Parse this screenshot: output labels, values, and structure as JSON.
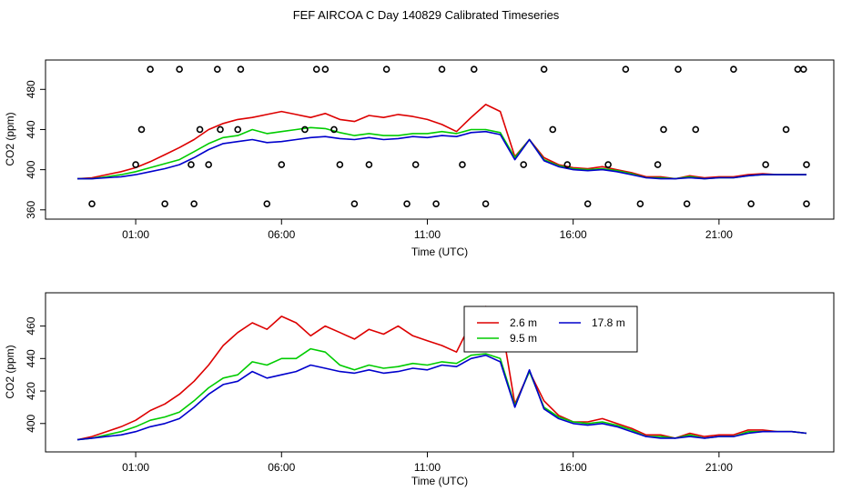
{
  "title": "FEF AIRCOA C  Day 140829  Calibrated Timeseries",
  "colors": {
    "s2_6": "#dd0000",
    "s9_5": "#00cc00",
    "s17_8": "#0000cc",
    "axis": "#000000"
  },
  "chart_data": [
    {
      "type": "line",
      "title": "FEF AIRCOA C  Day 140829  Calibrated Timeseries",
      "xlabel": "Time (UTC)",
      "ylabel": "CO2 (ppm)",
      "x_unit": "hours UTC",
      "xlim": [
        -1.0,
        24.0
      ],
      "ylim": [
        358,
        502
      ],
      "x_ticks": [
        1,
        6,
        11,
        16,
        21
      ],
      "x_tick_labels": [
        "01:00",
        "06:00",
        "11:00",
        "16:00",
        "21:00"
      ],
      "y_ticks": [
        360,
        400,
        440,
        480
      ],
      "y_tick_labels": [
        "360",
        "400",
        "440",
        "480"
      ],
      "grid": false,
      "legend": "none",
      "series": [
        {
          "color_key": "s2_6",
          "x": [
            -1.0,
            -0.5,
            0.0,
            0.5,
            1.0,
            1.5,
            2.0,
            2.5,
            3.0,
            3.5,
            4.0,
            4.5,
            5.0,
            5.5,
            6.0,
            6.5,
            7.0,
            7.5,
            8.0,
            8.5,
            9.0,
            9.5,
            10.0,
            10.5,
            11.0,
            11.5,
            12.0,
            12.5,
            13.0,
            13.5,
            14.0,
            14.5,
            15.0,
            15.5,
            16.0,
            16.5,
            17.0,
            17.5,
            18.0,
            18.5,
            19.0,
            19.5,
            20.0,
            20.5,
            21.0,
            21.5,
            22.0,
            22.5,
            23.0,
            23.5,
            24.0
          ],
          "y": [
            391,
            392,
            395,
            398,
            402,
            408,
            415,
            422,
            430,
            440,
            446,
            450,
            452,
            455,
            458,
            455,
            452,
            456,
            450,
            448,
            454,
            452,
            455,
            453,
            450,
            445,
            438,
            452,
            465,
            458,
            413,
            430,
            412,
            405,
            402,
            401,
            403,
            400,
            397,
            393,
            393,
            391,
            394,
            392,
            393,
            393,
            395,
            396,
            395,
            395,
            395
          ]
        },
        {
          "color_key": "s9_5",
          "x": [
            -1.0,
            -0.5,
            0.0,
            0.5,
            1.0,
            1.5,
            2.0,
            2.5,
            3.0,
            3.5,
            4.0,
            4.5,
            5.0,
            5.5,
            6.0,
            6.5,
            7.0,
            7.5,
            8.0,
            8.5,
            9.0,
            9.5,
            10.0,
            10.5,
            11.0,
            11.5,
            12.0,
            12.5,
            13.0,
            13.5,
            14.0,
            14.5,
            15.0,
            15.5,
            16.0,
            16.5,
            17.0,
            17.5,
            18.0,
            18.5,
            19.0,
            19.5,
            20.0,
            20.5,
            21.0,
            21.5,
            22.0,
            22.5,
            23.0,
            23.5,
            24.0
          ],
          "y": [
            391,
            391,
            393,
            395,
            398,
            402,
            406,
            410,
            418,
            426,
            432,
            434,
            440,
            436,
            438,
            440,
            442,
            441,
            437,
            434,
            436,
            434,
            434,
            436,
            436,
            438,
            436,
            440,
            440,
            437,
            412,
            430,
            410,
            404,
            401,
            400,
            401,
            399,
            396,
            392,
            392,
            391,
            393,
            391,
            392,
            392,
            394,
            395,
            395,
            395,
            395
          ]
        },
        {
          "color_key": "s17_8",
          "x": [
            -1.0,
            -0.5,
            0.0,
            0.5,
            1.0,
            1.5,
            2.0,
            2.5,
            3.0,
            3.5,
            4.0,
            4.5,
            5.0,
            5.5,
            6.0,
            6.5,
            7.0,
            7.5,
            8.0,
            8.5,
            9.0,
            9.5,
            10.0,
            10.5,
            11.0,
            11.5,
            12.0,
            12.5,
            13.0,
            13.5,
            14.0,
            14.5,
            15.0,
            15.5,
            16.0,
            16.5,
            17.0,
            17.5,
            18.0,
            18.5,
            19.0,
            19.5,
            20.0,
            20.5,
            21.0,
            21.5,
            22.0,
            22.5,
            23.0,
            23.5,
            24.0
          ],
          "y": [
            391,
            391,
            392,
            393,
            395,
            398,
            401,
            405,
            412,
            420,
            426,
            428,
            430,
            427,
            428,
            430,
            432,
            433,
            431,
            430,
            432,
            430,
            431,
            433,
            432,
            434,
            433,
            437,
            438,
            435,
            410,
            430,
            409,
            403,
            400,
            399,
            400,
            398,
            395,
            392,
            391,
            391,
            392,
            391,
            392,
            392,
            394,
            395,
            395,
            395,
            395
          ]
        }
      ],
      "scatter_points": {
        "x": [
          -0.5,
          1.0,
          1.2,
          1.5,
          2.0,
          2.5,
          2.9,
          3.0,
          3.2,
          3.5,
          3.8,
          3.9,
          4.5,
          4.6,
          5.5,
          6.0,
          6.8,
          7.2,
          7.5,
          7.8,
          8.0,
          8.5,
          9.0,
          9.6,
          10.3,
          10.6,
          11.3,
          11.5,
          12.2,
          12.6,
          13.0,
          14.3,
          15.0,
          15.3,
          15.8,
          16.5,
          17.2,
          17.8,
          18.3,
          18.9,
          19.1,
          19.6,
          19.9,
          20.2,
          21.5,
          22.1,
          22.6,
          23.3,
          23.7,
          23.9,
          24.0,
          24.0
        ],
        "y": [
          366,
          405,
          440,
          500,
          366,
          500,
          405,
          366,
          440,
          405,
          500,
          440,
          440,
          500,
          366,
          405,
          440,
          500,
          500,
          440,
          405,
          366,
          405,
          500,
          366,
          405,
          366,
          500,
          405,
          500,
          366,
          405,
          500,
          440,
          405,
          366,
          405,
          500,
          366,
          405,
          440,
          500,
          366,
          440,
          500,
          366,
          405,
          440,
          500,
          500,
          366,
          405
        ]
      }
    },
    {
      "type": "line",
      "xlabel": "Time (UTC)",
      "ylabel": "CO2 (ppm)",
      "x_unit": "hours UTC",
      "xlim": [
        -1.0,
        24.0
      ],
      "ylim": [
        387,
        476
      ],
      "x_ticks": [
        1,
        6,
        11,
        16,
        21
      ],
      "x_tick_labels": [
        "01:00",
        "06:00",
        "11:00",
        "16:00",
        "21:00"
      ],
      "y_ticks": [
        400,
        420,
        440,
        460
      ],
      "y_tick_labels": [
        "400",
        "420",
        "440",
        "460"
      ],
      "grid": false,
      "legend": "top-right",
      "legend_entries": [
        {
          "label": "2.6 m",
          "color_key": "s2_6"
        },
        {
          "label": "9.5 m",
          "color_key": "s9_5"
        },
        {
          "label": "17.8 m",
          "color_key": "s17_8"
        }
      ],
      "series": [
        {
          "name": "2.6 m",
          "color_key": "s2_6",
          "x": [
            -1.0,
            -0.5,
            0.0,
            0.5,
            1.0,
            1.5,
            2.0,
            2.5,
            3.0,
            3.5,
            4.0,
            4.5,
            5.0,
            5.5,
            6.0,
            6.5,
            7.0,
            7.5,
            8.0,
            8.5,
            9.0,
            9.5,
            10.0,
            10.5,
            11.0,
            11.5,
            12.0,
            12.5,
            13.0,
            13.5,
            14.0,
            14.5,
            15.0,
            15.5,
            16.0,
            16.5,
            17.0,
            17.5,
            18.0,
            18.5,
            19.0,
            19.5,
            20.0,
            20.5,
            21.0,
            21.5,
            22.0,
            22.5,
            23.0,
            23.5,
            24.0
          ],
          "y": [
            390,
            392,
            395,
            398,
            402,
            408,
            412,
            418,
            426,
            436,
            448,
            456,
            462,
            458,
            466,
            462,
            454,
            460,
            456,
            452,
            458,
            455,
            460,
            454,
            451,
            448,
            444,
            462,
            472,
            466,
            412,
            432,
            414,
            405,
            401,
            401,
            403,
            400,
            397,
            393,
            393,
            391,
            394,
            392,
            393,
            393,
            396,
            396,
            395,
            395,
            394
          ]
        },
        {
          "name": "9.5 m",
          "color_key": "s9_5",
          "x": [
            -1.0,
            -0.5,
            0.0,
            0.5,
            1.0,
            1.5,
            2.0,
            2.5,
            3.0,
            3.5,
            4.0,
            4.5,
            5.0,
            5.5,
            6.0,
            6.5,
            7.0,
            7.5,
            8.0,
            8.5,
            9.0,
            9.5,
            10.0,
            10.5,
            11.0,
            11.5,
            12.0,
            12.5,
            13.0,
            13.5,
            14.0,
            14.5,
            15.0,
            15.5,
            16.0,
            16.5,
            17.0,
            17.5,
            18.0,
            18.5,
            19.0,
            19.5,
            20.0,
            20.5,
            21.0,
            21.5,
            22.0,
            22.5,
            23.0,
            23.5,
            24.0
          ],
          "y": [
            390,
            391,
            393,
            395,
            398,
            402,
            404,
            407,
            414,
            422,
            428,
            430,
            438,
            436,
            440,
            440,
            446,
            444,
            436,
            433,
            436,
            434,
            435,
            437,
            436,
            438,
            437,
            442,
            443,
            440,
            411,
            432,
            410,
            404,
            401,
            400,
            401,
            399,
            396,
            392,
            392,
            391,
            393,
            391,
            392,
            392,
            395,
            395,
            395,
            395,
            394
          ]
        },
        {
          "name": "17.8 m",
          "color_key": "s17_8",
          "x": [
            -1.0,
            -0.5,
            0.0,
            0.5,
            1.0,
            1.5,
            2.0,
            2.5,
            3.0,
            3.5,
            4.0,
            4.5,
            5.0,
            5.5,
            6.0,
            6.5,
            7.0,
            7.5,
            8.0,
            8.5,
            9.0,
            9.5,
            10.0,
            10.5,
            11.0,
            11.5,
            12.0,
            12.5,
            13.0,
            13.5,
            14.0,
            14.5,
            15.0,
            15.5,
            16.0,
            16.5,
            17.0,
            17.5,
            18.0,
            18.5,
            19.0,
            19.5,
            20.0,
            20.5,
            21.0,
            21.5,
            22.0,
            22.5,
            23.0,
            23.5,
            24.0
          ],
          "y": [
            390,
            391,
            392,
            393,
            395,
            398,
            400,
            403,
            410,
            418,
            424,
            426,
            432,
            428,
            430,
            432,
            436,
            434,
            432,
            431,
            433,
            431,
            432,
            434,
            433,
            436,
            435,
            440,
            442,
            438,
            410,
            433,
            409,
            403,
            400,
            399,
            400,
            398,
            395,
            392,
            391,
            391,
            392,
            391,
            392,
            392,
            394,
            395,
            395,
            395,
            394
          ]
        }
      ]
    }
  ]
}
